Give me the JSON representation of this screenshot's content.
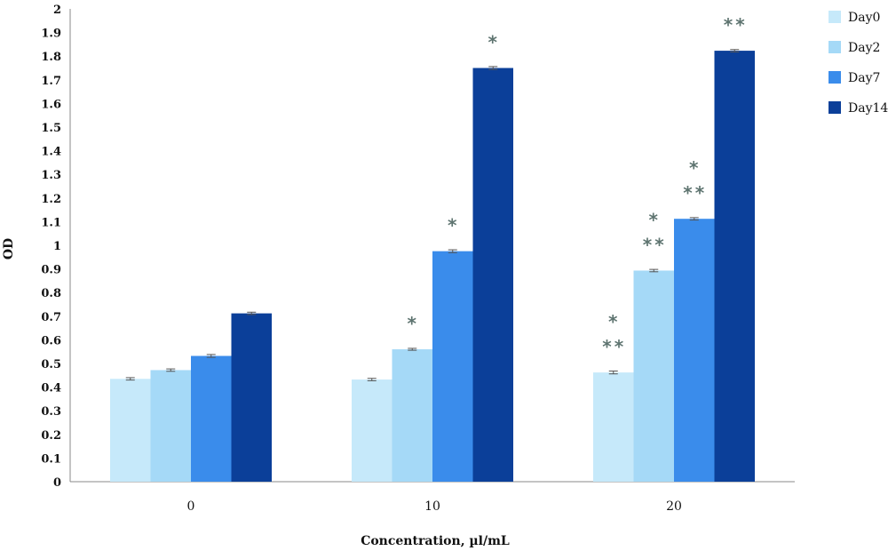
{
  "chart_data": {
    "type": "bar",
    "title": "",
    "xlabel": "Concentration, µl/mL",
    "ylabel": "OD",
    "ylim": [
      0,
      2
    ],
    "yticks": [
      0,
      0.1,
      0.2,
      0.3,
      0.4,
      0.5,
      0.6,
      0.7,
      0.8,
      0.9,
      1,
      1.1,
      1.2,
      1.3,
      1.4,
      1.5,
      1.6,
      1.7,
      1.8,
      1.9,
      2
    ],
    "categories": [
      "0",
      "10",
      "20"
    ],
    "series": [
      {
        "name": "Day0",
        "color": "#c6e9fa",
        "values": [
          0.435,
          0.432,
          0.462
        ],
        "errors": [
          0.005,
          0.005,
          0.006
        ],
        "significance": [
          [
            "",
            ""
          ],
          [
            "",
            ""
          ],
          [
            "*",
            "**"
          ]
        ]
      },
      {
        "name": "Day2",
        "color": "#a5d9f7",
        "values": [
          0.472,
          0.56,
          0.893
        ],
        "errors": [
          0.005,
          0.004,
          0.005
        ],
        "significance": [
          [
            "",
            ""
          ],
          [
            "*",
            ""
          ],
          [
            "*",
            "**"
          ]
        ]
      },
      {
        "name": "Day7",
        "color": "#3a8ceb",
        "values": [
          0.532,
          0.975,
          1.112
        ],
        "errors": [
          0.006,
          0.006,
          0.005
        ],
        "significance": [
          [
            "",
            ""
          ],
          [
            "*",
            ""
          ],
          [
            "*",
            "**"
          ]
        ]
      },
      {
        "name": "Day14",
        "color": "#0b3f99",
        "values": [
          0.712,
          1.75,
          1.823
        ],
        "errors": [
          0.005,
          0.006,
          0.005
        ],
        "significance": [
          [
            "",
            ""
          ],
          [
            "*",
            ""
          ],
          [
            "**",
            ""
          ]
        ]
      }
    ],
    "legend": "right",
    "grid": false
  }
}
